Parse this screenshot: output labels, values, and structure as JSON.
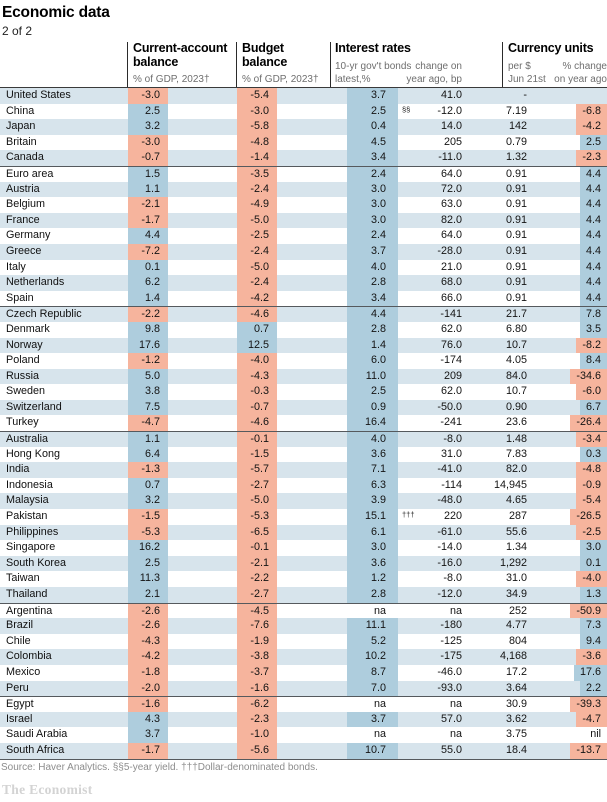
{
  "chart_data": {
    "type": "table",
    "title": "Economic data",
    "subtitle": "2 of 2",
    "columns": {
      "current_account": {
        "title": "Current-account balance",
        "sub": "% of GDP, 2023†"
      },
      "budget": {
        "title": "Budget balance",
        "sub": "% of GDP, 2023†"
      },
      "interest": {
        "title": "Interest rates",
        "sub_left1": "10-yr gov't bonds",
        "sub_left2": "latest,%",
        "sub_right1": "change on",
        "sub_right2": "year ago, bp"
      },
      "currency": {
        "title": "Currency units",
        "sub_left1": "per $",
        "sub_left2": "Jun 21st",
        "sub_right1": "% change",
        "sub_right2": "on year ago"
      }
    },
    "rows": [
      {
        "country": "United States",
        "ca": "-3.0",
        "budget": "-5.4",
        "rate": "3.7",
        "note": "",
        "rate_chg": "41.0",
        "per_usd": "-",
        "fx_chg": ""
      },
      {
        "country": "China",
        "ca": "2.5",
        "budget": "-3.0",
        "rate": "2.5",
        "note": "§§",
        "rate_chg": "-12.0",
        "per_usd": "7.19",
        "fx_chg": "-6.8"
      },
      {
        "country": "Japan",
        "ca": "3.2",
        "budget": "-5.8",
        "rate": "0.4",
        "note": "",
        "rate_chg": "14.0",
        "per_usd": "142",
        "fx_chg": "-4.2"
      },
      {
        "country": "Britain",
        "ca": "-3.0",
        "budget": "-4.8",
        "rate": "4.5",
        "note": "",
        "rate_chg": "205",
        "per_usd": "0.79",
        "fx_chg": "2.5"
      },
      {
        "country": "Canada",
        "ca": "-0.7",
        "budget": "-1.4",
        "rate": "3.4",
        "note": "",
        "rate_chg": "-11.0",
        "per_usd": "1.32",
        "fx_chg": "-2.3"
      },
      {
        "country": "Euro area",
        "ca": "1.5",
        "budget": "-3.5",
        "rate": "2.4",
        "note": "",
        "rate_chg": "64.0",
        "per_usd": "0.91",
        "fx_chg": "4.4"
      },
      {
        "country": "Austria",
        "ca": "1.1",
        "budget": "-2.4",
        "rate": "3.0",
        "note": "",
        "rate_chg": "72.0",
        "per_usd": "0.91",
        "fx_chg": "4.4"
      },
      {
        "country": "Belgium",
        "ca": "-2.1",
        "budget": "-4.9",
        "rate": "3.0",
        "note": "",
        "rate_chg": "63.0",
        "per_usd": "0.91",
        "fx_chg": "4.4"
      },
      {
        "country": "France",
        "ca": "-1.7",
        "budget": "-5.0",
        "rate": "3.0",
        "note": "",
        "rate_chg": "82.0",
        "per_usd": "0.91",
        "fx_chg": "4.4"
      },
      {
        "country": "Germany",
        "ca": "4.4",
        "budget": "-2.5",
        "rate": "2.4",
        "note": "",
        "rate_chg": "64.0",
        "per_usd": "0.91",
        "fx_chg": "4.4"
      },
      {
        "country": "Greece",
        "ca": "-7.2",
        "budget": "-2.4",
        "rate": "3.7",
        "note": "",
        "rate_chg": "-28.0",
        "per_usd": "0.91",
        "fx_chg": "4.4"
      },
      {
        "country": "Italy",
        "ca": "0.1",
        "budget": "-5.0",
        "rate": "4.0",
        "note": "",
        "rate_chg": "21.0",
        "per_usd": "0.91",
        "fx_chg": "4.4"
      },
      {
        "country": "Netherlands",
        "ca": "6.2",
        "budget": "-2.4",
        "rate": "2.8",
        "note": "",
        "rate_chg": "68.0",
        "per_usd": "0.91",
        "fx_chg": "4.4"
      },
      {
        "country": "Spain",
        "ca": "1.4",
        "budget": "-4.2",
        "rate": "3.4",
        "note": "",
        "rate_chg": "66.0",
        "per_usd": "0.91",
        "fx_chg": "4.4"
      },
      {
        "country": "Czech Republic",
        "ca": "-2.2",
        "budget": "-4.6",
        "rate": "4.4",
        "note": "",
        "rate_chg": "-141",
        "per_usd": "21.7",
        "fx_chg": "7.8"
      },
      {
        "country": "Denmark",
        "ca": "9.8",
        "budget": "0.7",
        "rate": "2.8",
        "note": "",
        "rate_chg": "62.0",
        "per_usd": "6.80",
        "fx_chg": "3.5"
      },
      {
        "country": "Norway",
        "ca": "17.6",
        "budget": "12.5",
        "rate": "1.4",
        "note": "",
        "rate_chg": "76.0",
        "per_usd": "10.7",
        "fx_chg": "-8.2"
      },
      {
        "country": "Poland",
        "ca": "-1.2",
        "budget": "-4.0",
        "rate": "6.0",
        "note": "",
        "rate_chg": "-174",
        "per_usd": "4.05",
        "fx_chg": "8.4"
      },
      {
        "country": "Russia",
        "ca": "5.0",
        "budget": "-4.3",
        "rate": "11.0",
        "note": "",
        "rate_chg": "209",
        "per_usd": "84.0",
        "fx_chg": "-34.6"
      },
      {
        "country": "Sweden",
        "ca": "3.8",
        "budget": "-0.3",
        "rate": "2.5",
        "note": "",
        "rate_chg": "62.0",
        "per_usd": "10.7",
        "fx_chg": "-6.0"
      },
      {
        "country": "Switzerland",
        "ca": "7.5",
        "budget": "-0.7",
        "rate": "0.9",
        "note": "",
        "rate_chg": "-50.0",
        "per_usd": "0.90",
        "fx_chg": "6.7"
      },
      {
        "country": "Turkey",
        "ca": "-4.7",
        "budget": "-4.6",
        "rate": "16.4",
        "note": "",
        "rate_chg": "-241",
        "per_usd": "23.6",
        "fx_chg": "-26.4"
      },
      {
        "country": "Australia",
        "ca": "1.1",
        "budget": "-0.1",
        "rate": "4.0",
        "note": "",
        "rate_chg": "-8.0",
        "per_usd": "1.48",
        "fx_chg": "-3.4"
      },
      {
        "country": "Hong Kong",
        "ca": "6.4",
        "budget": "-1.5",
        "rate": "3.6",
        "note": "",
        "rate_chg": "31.0",
        "per_usd": "7.83",
        "fx_chg": "0.3"
      },
      {
        "country": "India",
        "ca": "-1.3",
        "budget": "-5.7",
        "rate": "7.1",
        "note": "",
        "rate_chg": "-41.0",
        "per_usd": "82.0",
        "fx_chg": "-4.8"
      },
      {
        "country": "Indonesia",
        "ca": "0.7",
        "budget": "-2.7",
        "rate": "6.3",
        "note": "",
        "rate_chg": "-114",
        "per_usd": "14,945",
        "fx_chg": "-0.9"
      },
      {
        "country": "Malaysia",
        "ca": "3.2",
        "budget": "-5.0",
        "rate": "3.9",
        "note": "",
        "rate_chg": "-48.0",
        "per_usd": "4.65",
        "fx_chg": "-5.4"
      },
      {
        "country": "Pakistan",
        "ca": "-1.5",
        "budget": "-5.3",
        "rate": "15.1",
        "note": "†††",
        "rate_chg": "220",
        "per_usd": "287",
        "fx_chg": "-26.5"
      },
      {
        "country": "Philippines",
        "ca": "-5.3",
        "budget": "-6.5",
        "rate": "6.1",
        "note": "",
        "rate_chg": "-61.0",
        "per_usd": "55.6",
        "fx_chg": "-2.5"
      },
      {
        "country": "Singapore",
        "ca": "16.2",
        "budget": "-0.1",
        "rate": "3.0",
        "note": "",
        "rate_chg": "-14.0",
        "per_usd": "1.34",
        "fx_chg": "3.0"
      },
      {
        "country": "South Korea",
        "ca": "2.5",
        "budget": "-2.1",
        "rate": "3.6",
        "note": "",
        "rate_chg": "-16.0",
        "per_usd": "1,292",
        "fx_chg": "0.1"
      },
      {
        "country": "Taiwan",
        "ca": "11.3",
        "budget": "-2.2",
        "rate": "1.2",
        "note": "",
        "rate_chg": "-8.0",
        "per_usd": "31.0",
        "fx_chg": "-4.0"
      },
      {
        "country": "Thailand",
        "ca": "2.1",
        "budget": "-2.7",
        "rate": "2.8",
        "note": "",
        "rate_chg": "-12.0",
        "per_usd": "34.9",
        "fx_chg": "1.3"
      },
      {
        "country": "Argentina",
        "ca": "-2.6",
        "budget": "-4.5",
        "rate": "na",
        "note": "",
        "rate_chg": "na",
        "per_usd": "252",
        "fx_chg": "-50.9"
      },
      {
        "country": "Brazil",
        "ca": "-2.6",
        "budget": "-7.6",
        "rate": "11.1",
        "note": "",
        "rate_chg": "-180",
        "per_usd": "4.77",
        "fx_chg": "7.3"
      },
      {
        "country": "Chile",
        "ca": "-4.3",
        "budget": "-1.9",
        "rate": "5.2",
        "note": "",
        "rate_chg": "-125",
        "per_usd": "804",
        "fx_chg": "9.4"
      },
      {
        "country": "Colombia",
        "ca": "-4.2",
        "budget": "-3.8",
        "rate": "10.2",
        "note": "",
        "rate_chg": "-175",
        "per_usd": "4,168",
        "fx_chg": "-3.6"
      },
      {
        "country": "Mexico",
        "ca": "-1.8",
        "budget": "-3.7",
        "rate": "8.7",
        "note": "",
        "rate_chg": "-46.0",
        "per_usd": "17.2",
        "fx_chg": "17.6"
      },
      {
        "country": "Peru",
        "ca": "-2.0",
        "budget": "-1.6",
        "rate": "7.0",
        "note": "",
        "rate_chg": "-93.0",
        "per_usd": "3.64",
        "fx_chg": "2.2"
      },
      {
        "country": "Egypt",
        "ca": "-1.6",
        "budget": "-6.2",
        "rate": "na",
        "note": "",
        "rate_chg": "na",
        "per_usd": "30.9",
        "fx_chg": "-39.3"
      },
      {
        "country": "Israel",
        "ca": "4.3",
        "budget": "-2.3",
        "rate": "3.7",
        "note": "",
        "rate_chg": "57.0",
        "per_usd": "3.62",
        "fx_chg": "-4.7"
      },
      {
        "country": "Saudi Arabia",
        "ca": "3.7",
        "budget": "-1.0",
        "rate": "na",
        "note": "",
        "rate_chg": "na",
        "per_usd": "3.75",
        "fx_chg": "nil"
      },
      {
        "country": "South Africa",
        "ca": "-1.7",
        "budget": "-5.6",
        "rate": "10.7",
        "note": "",
        "rate_chg": "55.0",
        "per_usd": "18.4",
        "fx_chg": "-13.7"
      }
    ],
    "group_start_indices": [
      5,
      14,
      22,
      33,
      39
    ],
    "footnote": "Source: Haver Analytics. §§5-year yield. †††Dollar-denominated bonds.",
    "brand": "The Economist",
    "colors": {
      "row_band": "#d7e4ec",
      "positive_highlight": "#aecddd",
      "negative_highlight": "#f6b49d"
    }
  }
}
